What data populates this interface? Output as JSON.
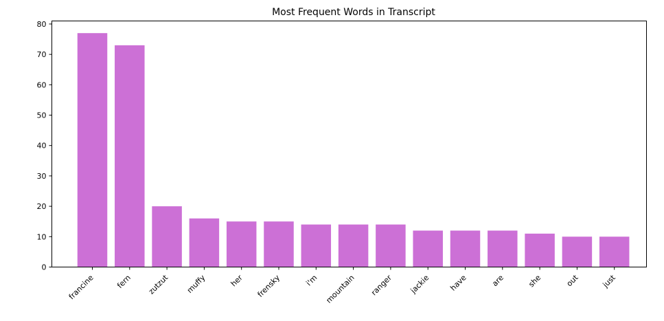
{
  "chart_data": {
    "type": "bar",
    "title": "Most Frequent Words in Transcript",
    "xlabel": "",
    "ylabel": "",
    "categories": [
      "francine",
      "fern",
      "zutzut",
      "muffy",
      "her",
      "frensky",
      "i'm",
      "mountain",
      "ranger",
      "jackie",
      "have",
      "are",
      "she",
      "out",
      "just"
    ],
    "values": [
      77,
      73,
      20,
      16,
      15,
      15,
      14,
      14,
      14,
      12,
      12,
      12,
      11,
      10,
      10
    ],
    "ylim": [
      0,
      81
    ],
    "yticks": [
      0,
      10,
      20,
      30,
      40,
      50,
      60,
      70,
      80
    ],
    "bar_color": "#cc70d6",
    "grid": false,
    "xtick_rotation": 45
  }
}
